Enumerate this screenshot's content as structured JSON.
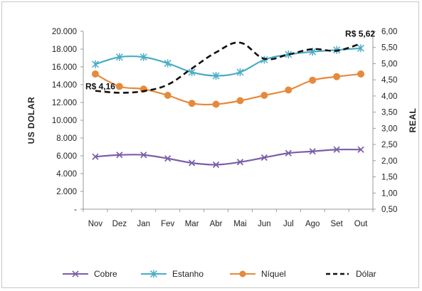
{
  "chart_data": {
    "type": "line",
    "categories": [
      "Nov",
      "Dez",
      "Jan",
      "Fev",
      "Mar",
      "Abr",
      "Mai",
      "Jun",
      "Jul",
      "Ago",
      "Set",
      "Out"
    ],
    "left_axis": {
      "label": "US DOLAR",
      "ylim": [
        0,
        20000
      ],
      "tick_labels": [
        "-",
        "2.000",
        "4.000",
        "6.000",
        "8.000",
        "10.000",
        "12.000",
        "14.000",
        "16.000",
        "18.000",
        "20.000"
      ]
    },
    "right_axis": {
      "label": "REAL",
      "ylim": [
        0.5,
        6.0
      ],
      "tick_labels": [
        "0,50",
        "1,00",
        "1,50",
        "2,00",
        "2,50",
        "3,00",
        "3,50",
        "4,00",
        "4,50",
        "5,00",
        "5,50",
        "6,00"
      ]
    },
    "series": [
      {
        "name": "Cobre",
        "axis": "left",
        "color": "#7b5ea7",
        "marker": "x",
        "values": [
          5900,
          6100,
          6100,
          5700,
          5200,
          5000,
          5300,
          5800,
          6300,
          6500,
          6700,
          6700
        ]
      },
      {
        "name": "Estanho",
        "axis": "left",
        "color": "#4aacc5",
        "marker": "asterisk",
        "values": [
          16300,
          17100,
          17100,
          16400,
          15400,
          15000,
          15400,
          16800,
          17400,
          17700,
          17900,
          18100
        ]
      },
      {
        "name": "Níquel",
        "axis": "left",
        "color": "#e58a3c",
        "marker": "circle",
        "values": [
          15200,
          13800,
          13500,
          12800,
          11900,
          11800,
          12200,
          12800,
          13400,
          14500,
          14900,
          15200
        ]
      },
      {
        "name": "Dólar",
        "axis": "right",
        "color": "#111111",
        "marker": "none",
        "dash": true,
        "values": [
          4.16,
          4.1,
          4.15,
          4.35,
          4.85,
          5.35,
          5.65,
          5.15,
          5.28,
          5.45,
          5.4,
          5.62
        ]
      }
    ],
    "annotations": [
      {
        "text": "R$ 4,16",
        "category": "Nov",
        "series": "Dólar"
      },
      {
        "text": "R$ 5,62",
        "category": "Out",
        "series": "Dólar"
      }
    ],
    "legend": {
      "placement": "bottom",
      "entries": [
        "Cobre",
        "Estanho",
        "Níquel",
        "Dólar"
      ]
    },
    "grid": false
  }
}
